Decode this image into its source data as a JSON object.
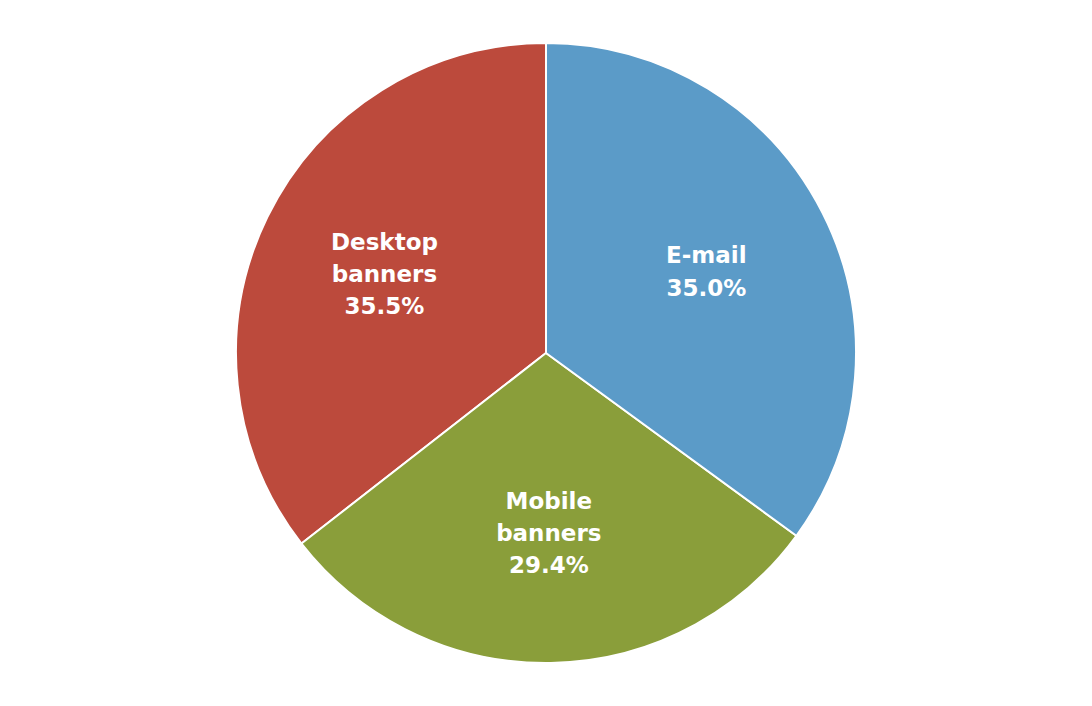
{
  "chart_data": {
    "type": "pie",
    "categories": [
      "Desktop\nbanners",
      "Mobile\nbanners",
      "E-mail"
    ],
    "values": [
      35.5,
      29.4,
      35.0
    ],
    "value_labels": [
      "35.5%",
      "29.4%",
      "35.0%"
    ],
    "data_labels": true,
    "colors": [
      "#bc4a3c",
      "#8a9e3a",
      "#5b9bc8"
    ]
  }
}
